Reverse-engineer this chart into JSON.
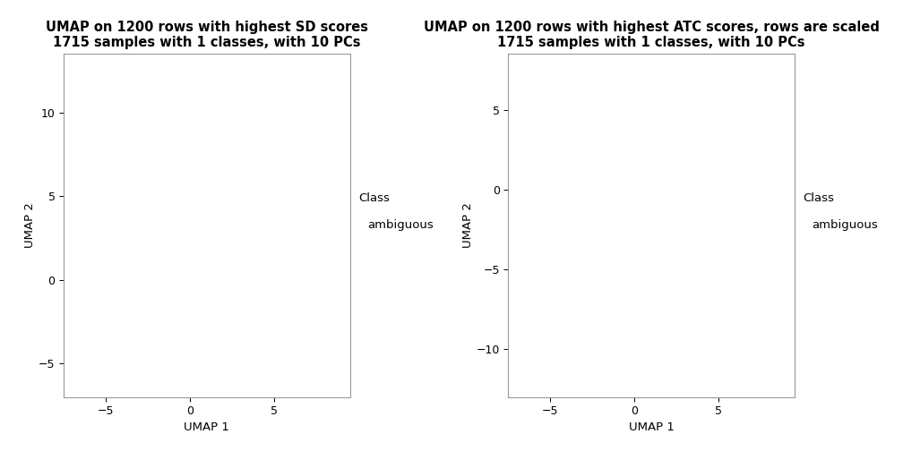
{
  "plot1": {
    "title_line1": "UMAP on 1200 rows with highest SD scores",
    "title_line2": "1715 samples with 1 classes, with 10 PCs",
    "xlabel": "UMAP 1",
    "ylabel": "UMAP 2",
    "xlim": [
      -7.5,
      9.5
    ],
    "ylim": [
      -7.0,
      13.5
    ],
    "xticks": [
      -5,
      0,
      5
    ],
    "yticks": [
      -5,
      0,
      5,
      10
    ],
    "legend_title": "Class",
    "legend_label": "ambiguous"
  },
  "plot2": {
    "title_line1": "UMAP on 1200 rows with highest ATC scores, rows are scaled",
    "title_line2": "1715 samples with 1 classes, with 10 PCs",
    "xlabel": "UMAP 1",
    "ylabel": "UMAP 2",
    "xlim": [
      -7.5,
      9.5
    ],
    "ylim": [
      -13.0,
      8.5
    ],
    "xticks": [
      -5,
      0,
      5
    ],
    "yticks": [
      -10,
      -5,
      0,
      5
    ],
    "legend_title": "Class",
    "legend_label": "ambiguous"
  },
  "background_color": "#ffffff",
  "plot_bg_color": "#ffffff",
  "border_color": "#999999",
  "title_fontsize": 10.5,
  "label_fontsize": 9.5,
  "tick_fontsize": 9,
  "legend_fontsize": 9.5
}
